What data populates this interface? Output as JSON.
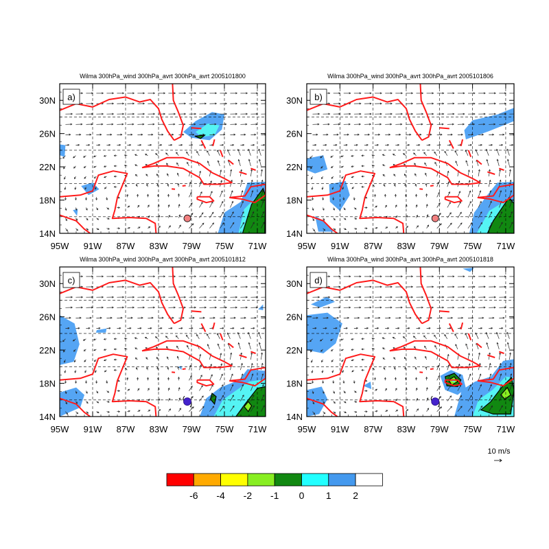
{
  "colors": {
    "coast": "#ff1a1a",
    "shade_pos1": "#55a5f4",
    "shade_pos0": "#55f4f4",
    "shade_dark": "#118811",
    "shade_lime": "#88ee22",
    "storm_pink": "#f28080",
    "storm_purple": "#4422cc"
  },
  "panels": [
    {
      "id": "a",
      "label": "a)",
      "title": "Wilma 300hPa_wind 300hPa_avrt 300hPa_avrt 2005101800",
      "storm_color": "pink",
      "storm_symbol": false
    },
    {
      "id": "b",
      "label": "b)",
      "title": "Wilma 300hPa_wind 300hPa_avrt 300hPa_avrt 2005101806",
      "storm_color": "pink",
      "storm_symbol": false
    },
    {
      "id": "c",
      "label": "c)",
      "title": "Wilma 300hPa_wind 300hPa_avrt 300hPa_avrt 2005101812",
      "storm_color": "purple",
      "storm_symbol": true
    },
    {
      "id": "d",
      "label": "d)",
      "title": "Wilma 300hPa_wind 300hPa_avrt 300hPa_avrt 2005101818",
      "storm_color": "purple",
      "storm_symbol": true
    }
  ],
  "map_extent": {
    "lon_min": -95,
    "lon_max": -70,
    "lat_min": 14,
    "lat_max": 32
  },
  "lon_ticks": [
    {
      "lon": -95,
      "label": "95W"
    },
    {
      "lon": -91,
      "label": "91W"
    },
    {
      "lon": -87,
      "label": "87W"
    },
    {
      "lon": -83,
      "label": "83W"
    },
    {
      "lon": -79,
      "label": "79W"
    },
    {
      "lon": -75,
      "label": "75W"
    },
    {
      "lon": -71,
      "label": "71W"
    }
  ],
  "lat_ticks": [
    {
      "lat": 14,
      "label": "14N"
    },
    {
      "lat": 18,
      "label": "18N"
    },
    {
      "lat": 22,
      "label": "22N"
    },
    {
      "lat": 26,
      "label": "26N"
    },
    {
      "lat": 30,
      "label": "30N"
    }
  ],
  "reference_vector": {
    "label": "10 m/s"
  },
  "colorbar": {
    "colors": [
      "#ff0000",
      "#ffaa00",
      "#ffff00",
      "#88ee22",
      "#118811",
      "#22ffff",
      "#4499ee",
      "#ffffff"
    ],
    "labels": [
      "-6",
      "-4",
      "-2",
      "-1",
      "0",
      "1",
      "2"
    ]
  }
}
